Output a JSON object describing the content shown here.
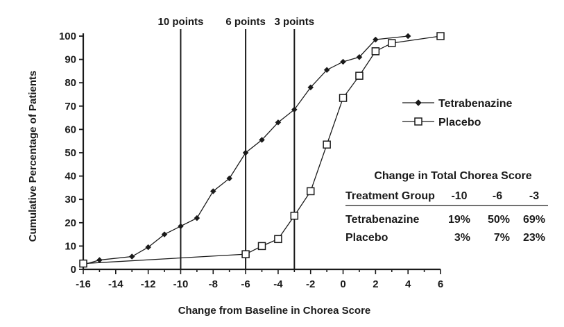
{
  "chart_data": {
    "type": "line",
    "title": "",
    "xlabel": "Change from Baseline in Chorea Score",
    "ylabel": "Cumulative Percentage of Patients",
    "xlim": [
      -16,
      6
    ],
    "ylim": [
      0,
      100
    ],
    "x_ticks": [
      -16,
      -14,
      -12,
      -10,
      -8,
      -6,
      -4,
      -2,
      0,
      2,
      4,
      6
    ],
    "x_tick_labels": [
      "-16",
      "-14",
      "-12",
      "-10",
      "-8",
      "-6",
      "-4",
      "-2",
      "0",
      "2",
      "4",
      "6"
    ],
    "y_ticks": [
      0,
      10,
      20,
      30,
      40,
      50,
      60,
      70,
      80,
      90,
      100
    ],
    "y_tick_labels": [
      "0",
      "10",
      "20",
      "30",
      "40",
      "50",
      "60",
      "70",
      "80",
      "90",
      "100"
    ],
    "grid": false,
    "legend_position": "right",
    "reference_lines": [
      {
        "x": -10,
        "label": "10 points"
      },
      {
        "x": -6,
        "label": "6 points"
      },
      {
        "x": -3,
        "label": "3 points"
      }
    ],
    "series": [
      {
        "name": "Tetrabenazine",
        "marker": "diamond-filled",
        "color": "#1a1a1a",
        "x": [
          -16,
          -15,
          -13,
          -12,
          -11,
          -10,
          -9,
          -8,
          -7,
          -6,
          -5,
          -4,
          -3,
          -2,
          -1,
          0,
          1,
          2,
          4
        ],
        "y": [
          2,
          4,
          5.5,
          9.5,
          15,
          18.5,
          22,
          33.5,
          39,
          50,
          55.5,
          63,
          68.5,
          78,
          85.5,
          89,
          91,
          98.5,
          100
        ]
      },
      {
        "name": "Placebo",
        "marker": "square-open",
        "color": "#1a1a1a",
        "x": [
          -16,
          -6,
          -5,
          -4,
          -3,
          -2,
          -1,
          0,
          1,
          2,
          3,
          6
        ],
        "y": [
          2.5,
          6.5,
          10,
          13,
          23,
          33.5,
          53.5,
          73.5,
          83,
          93.5,
          97,
          100
        ]
      }
    ],
    "table": {
      "title": "Change in Total Chorea Score",
      "header": [
        "Treatment Group",
        "-10",
        "-6",
        "-3"
      ],
      "rows": [
        [
          "Tetrabenazine",
          "19%",
          "50%",
          "69%"
        ],
        [
          "Placebo",
          "3%",
          "7%",
          "23%"
        ]
      ]
    }
  }
}
